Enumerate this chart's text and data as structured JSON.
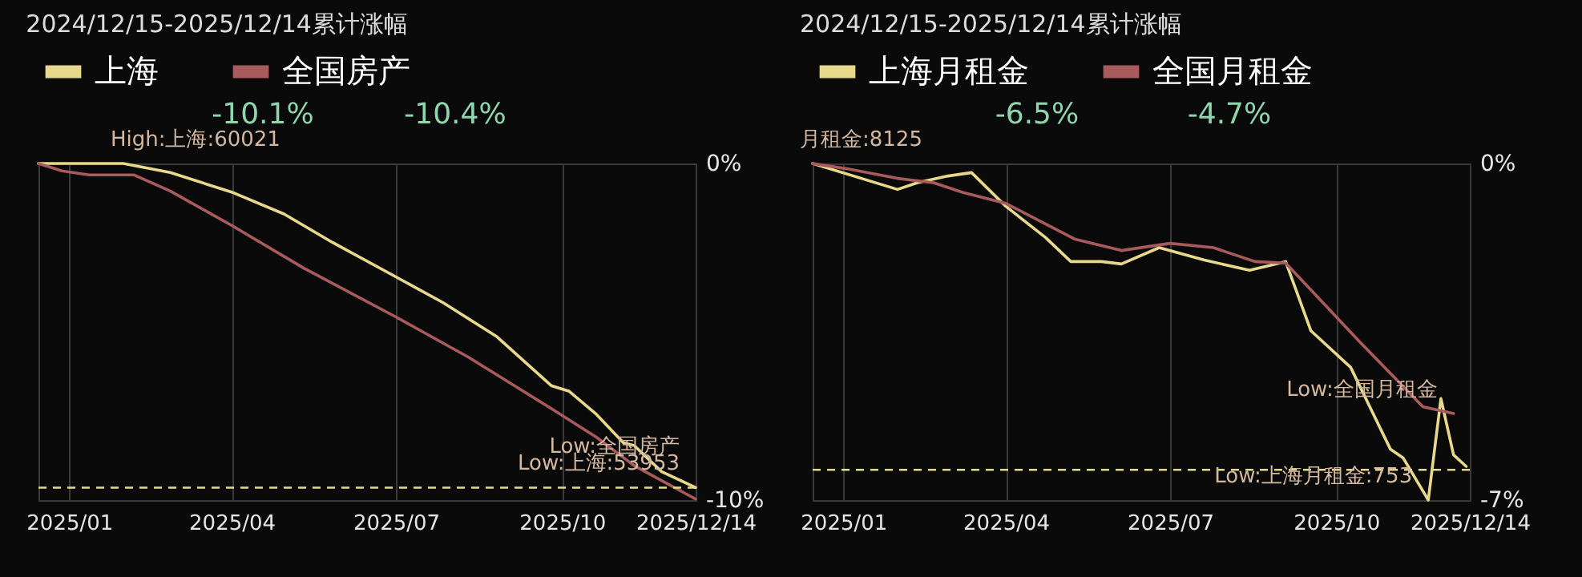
{
  "chart_data": [
    {
      "type": "line",
      "title": "2024/12/15-2025/12/14累计涨幅",
      "series": [
        {
          "name": "上海",
          "color": "#e8d98a",
          "x": [
            "2024-12-15",
            "2025-01-31",
            "2025-02-26",
            "2025-04-01",
            "2025-04-30",
            "2025-05-27",
            "2025-07-01",
            "2025-07-27",
            "2025-08-26",
            "2025-09-25",
            "2025-10-05",
            "2025-10-20",
            "2025-11-04",
            "2025-11-10",
            "2025-11-25",
            "2025-12-14"
          ],
          "values": [
            0,
            0,
            -0.27,
            -0.85,
            -1.5,
            -2.35,
            -3.37,
            -4.13,
            -5.15,
            -6.6,
            -6.77,
            -7.45,
            -8.3,
            -8.38,
            -9.15,
            -9.63
          ]
        },
        {
          "name": "全国房产",
          "color": "#a85a5c",
          "x": [
            "2024-12-15",
            "2024-12-28",
            "2025-01-12",
            "2025-02-06",
            "2025-02-26",
            "2025-04-01",
            "2025-05-11",
            "2025-07-01",
            "2025-08-10",
            "2025-09-25",
            "2025-10-20",
            "2025-11-10",
            "2025-12-14"
          ],
          "values": [
            0,
            -0.22,
            -0.34,
            -0.34,
            -0.82,
            -1.84,
            -3.11,
            -4.56,
            -5.75,
            -7.28,
            -8.13,
            -8.98,
            -9.97
          ]
        }
      ],
      "xlim": [
        "2024-12-15",
        "2025-12-14"
      ],
      "xticks": [
        {
          "value": "2025-01-01",
          "label": "2025/01"
        },
        {
          "value": "2025-04-01",
          "label": "2025/04"
        },
        {
          "value": "2025-07-01",
          "label": "2025/07"
        },
        {
          "value": "2025-10-01",
          "label": "2025/10"
        },
        {
          "value": "2025-12-14",
          "label": "2025/12/14"
        }
      ],
      "ylim": [
        -10,
        0
      ],
      "yticks": [
        {
          "value": 0,
          "label": "0%"
        },
        {
          "value": -10,
          "label": "-10%"
        }
      ],
      "ref_lines": [
        {
          "axis": "y",
          "value": -9.63,
          "color": "#e8d98a",
          "line_style": "dashed"
        }
      ],
      "annotations": [
        "-10.1%",
        "-10.4%",
        {
          "text": "High:上海:60021",
          "x": "2025-01-31",
          "y": 0
        },
        {
          "text": "Low:上海:53953",
          "x": "2025-12-14",
          "y": -9.63
        },
        {
          "text": "Low:全国房产",
          "x": "2025-12-14",
          "y": -9.97
        }
      ],
      "grid": true,
      "legend": "top"
    },
    {
      "type": "line",
      "title": "2024/12/15-2025/12/14累计涨幅",
      "series": [
        {
          "name": "上海月租金",
          "color": "#e8d98a",
          "x": [
            "2024-12-15",
            "2025-01-31",
            "2025-02-11",
            "2025-02-28",
            "2025-03-13",
            "2025-04-01",
            "2025-04-23",
            "2025-05-07",
            "2025-05-24",
            "2025-06-04",
            "2025-06-25",
            "2025-07-20",
            "2025-08-14",
            "2025-09-03",
            "2025-09-17",
            "2025-10-09",
            "2025-10-31",
            "2025-11-07",
            "2025-11-21",
            "2025-11-28",
            "2025-12-05",
            "2025-12-12"
          ],
          "values": [
            0,
            -0.54,
            -0.4,
            -0.26,
            -0.19,
            -0.89,
            -1.54,
            -2.04,
            -2.04,
            -2.09,
            -1.75,
            -2.01,
            -2.22,
            -2.04,
            -3.48,
            -4.24,
            -5.94,
            -6.12,
            -7.0,
            -4.89,
            -6.06,
            -6.3
          ]
        },
        {
          "name": "全国月租金",
          "color": "#a85a5c",
          "x": [
            "2024-12-15",
            "2025-01-03",
            "2025-01-31",
            "2025-02-20",
            "2025-03-08",
            "2025-04-01",
            "2025-05-09",
            "2025-06-04",
            "2025-07-01",
            "2025-07-25",
            "2025-08-17",
            "2025-09-03",
            "2025-10-14",
            "2025-11-18",
            "2025-12-05"
          ],
          "values": [
            0,
            -0.11,
            -0.31,
            -0.4,
            -0.6,
            -0.83,
            -1.57,
            -1.81,
            -1.66,
            -1.75,
            -2.04,
            -2.07,
            -3.71,
            -5.06,
            -5.2
          ]
        }
      ],
      "xlim": [
        "2024-12-15",
        "2025-12-14"
      ],
      "xticks": [
        {
          "value": "2025-01-01",
          "label": "2025/01"
        },
        {
          "value": "2025-04-01",
          "label": "2025/04"
        },
        {
          "value": "2025-07-01",
          "label": "2025/07"
        },
        {
          "value": "2025-10-01",
          "label": "2025/10"
        },
        {
          "value": "2025-12-14",
          "label": "2025/12/14"
        }
      ],
      "ylim": [
        -7,
        0
      ],
      "yticks": [
        {
          "value": 0,
          "label": "0%"
        },
        {
          "value": -7,
          "label": "-7%"
        }
      ],
      "ref_lines": [
        {
          "axis": "y",
          "value": -6.37,
          "color": "#e8d98a",
          "line_style": "dashed"
        }
      ],
      "annotations": [
        "-6.5%",
        "-4.7%",
        {
          "text": "月租金:8125",
          "x": "2024-12-15",
          "y": 0
        },
        {
          "text": "Low:上海月租金:753",
          "x": "2025-11-21",
          "y": -7.0
        },
        {
          "text": "Low:全国月租金",
          "x": "2025-12-05",
          "y": -5.2
        }
      ],
      "grid": true,
      "legend": "top"
    }
  ]
}
